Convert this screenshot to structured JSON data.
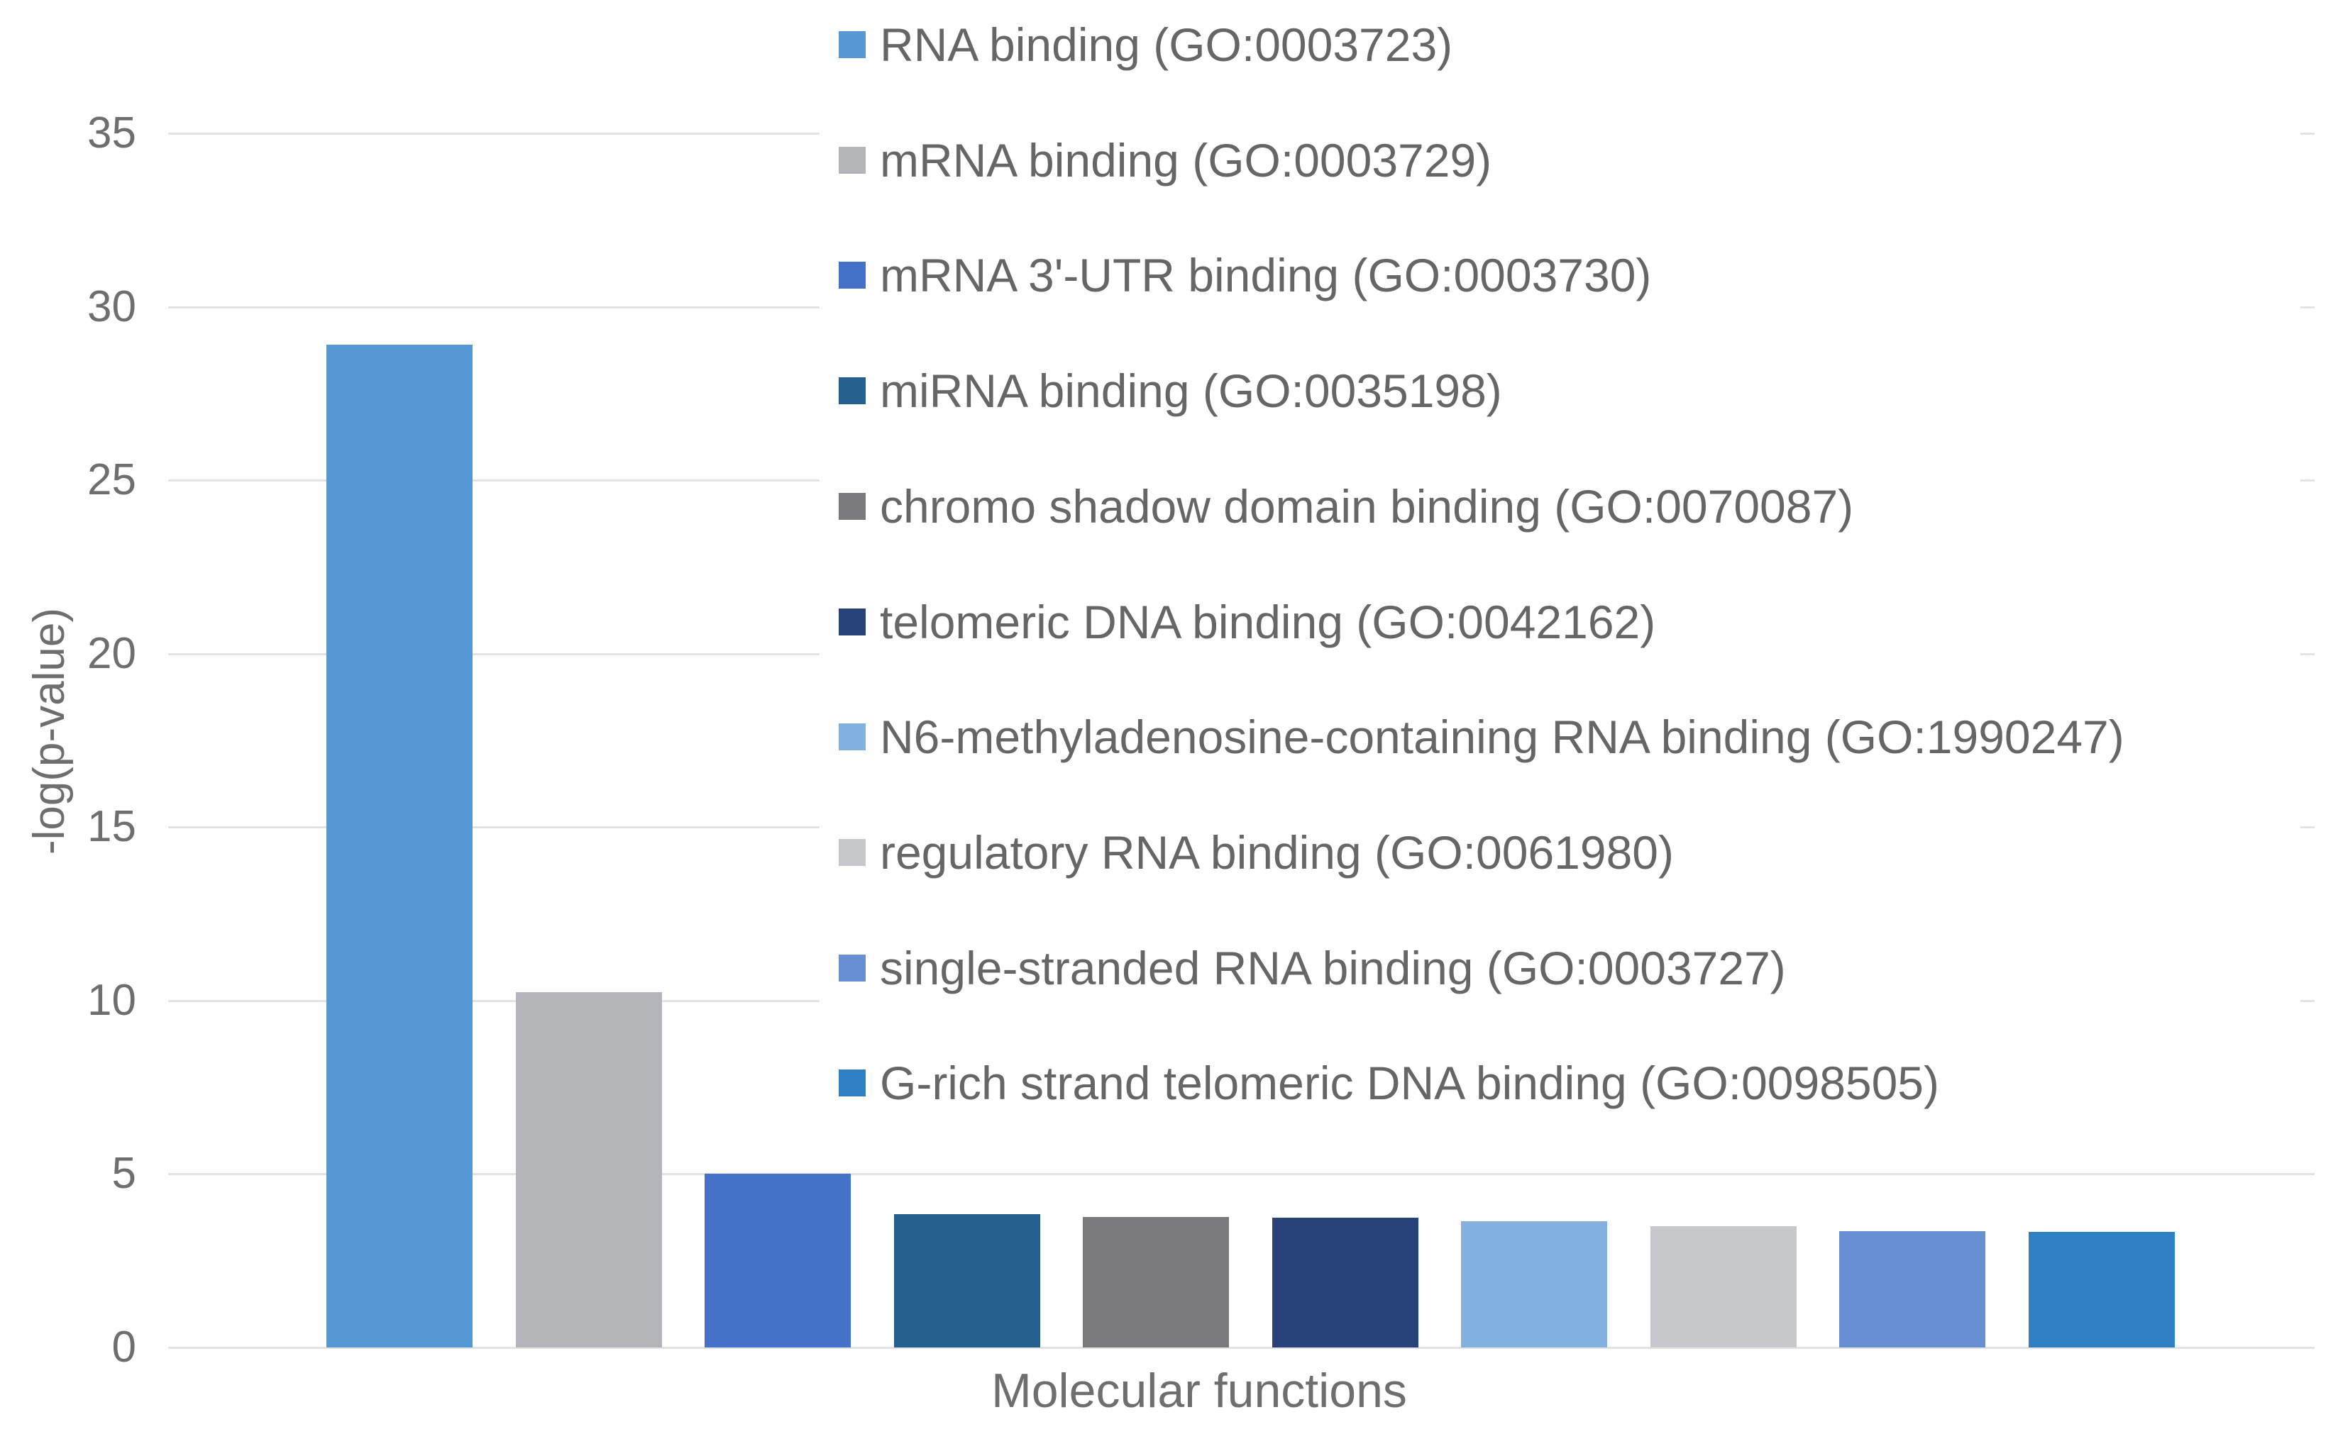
{
  "chart_data": {
    "type": "bar",
    "title": "",
    "xlabel": "Molecular functions",
    "ylabel": "-log(p-value)",
    "ylim": [
      0,
      35
    ],
    "yticks": [
      0,
      5,
      10,
      15,
      20,
      25,
      30,
      35
    ],
    "grid": true,
    "legend_position": "upper-right-overlay",
    "categories": [
      "RNA binding (GO:0003723)",
      "mRNA binding (GO:0003729)",
      "mRNA 3'-UTR binding (GO:0003730)",
      "miRNA binding (GO:0035198)",
      "chromo shadow domain binding (GO:0070087)",
      "telomeric DNA binding (GO:0042162)",
      "N6-methyladenosine-containing RNA binding (GO:1990247)",
      "regulatory RNA binding (GO:0061980)",
      "single-stranded RNA binding (GO:0003727)",
      "G-rich strand telomeric DNA binding (GO:0098505)"
    ],
    "values": [
      28.9,
      10.25,
      5.0,
      3.85,
      3.77,
      3.74,
      3.64,
      3.5,
      3.35,
      3.33
    ],
    "bar_colors": [
      "#5598D4",
      "#B4B5B8",
      "#4472C8",
      "#25608F",
      "#7A7A7C",
      "#27437A",
      "#82B0DF",
      "#C7C8CB",
      "#688FD2",
      "#2F7FC5"
    ]
  },
  "colors": {
    "background": "#ffffff",
    "gridline": "#e3e3e3",
    "axis_text": "#6e6e6e",
    "legend_text": "#666666"
  }
}
